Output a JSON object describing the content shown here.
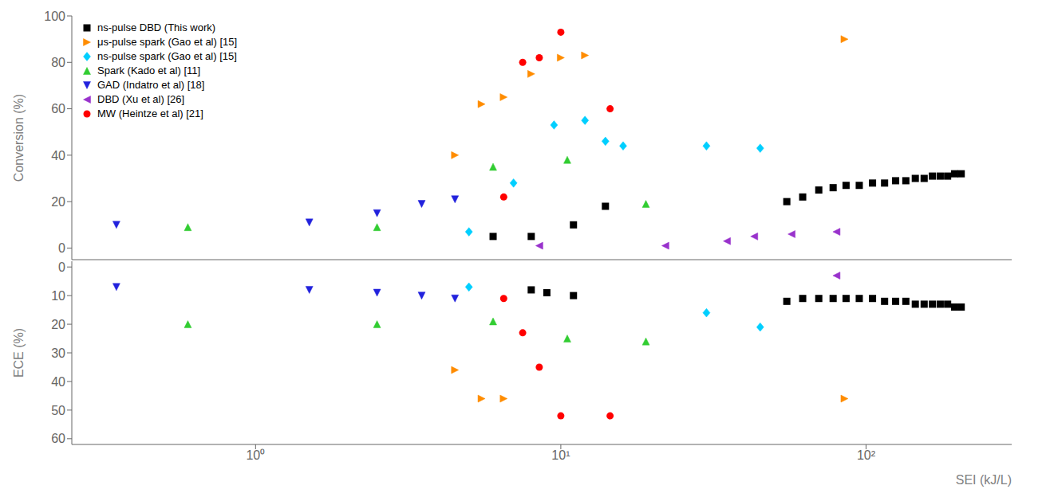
{
  "chart_data": [
    {
      "type": "scatter",
      "ylabel": "Conversion (%)",
      "log": "x",
      "xlim": [
        0.25,
        300
      ],
      "ylim": [
        -5,
        100
      ],
      "yticks": [
        0,
        20,
        40,
        60,
        80,
        100
      ],
      "tick_labels": "y",
      "grid": false,
      "legend": "upper left",
      "series": [
        {
          "name": "ns-pulse DBD (This work)",
          "color": "#000000",
          "marker": "square",
          "x": [
            6.0,
            8.0,
            11.0,
            14.0,
            55,
            62,
            70,
            78,
            86,
            95,
            105,
            115,
            125,
            135,
            145,
            155,
            165,
            175,
            185,
            195,
            205
          ],
          "values": [
            5,
            5,
            10,
            18,
            20,
            22,
            25,
            26,
            27,
            27,
            28,
            28,
            29,
            29,
            30,
            30,
            31,
            31,
            31,
            32,
            32
          ]
        },
        {
          "name": "μs-pulse spark (Gao et al) [15]",
          "color": "#FF8C00",
          "marker": "triangle-right",
          "x": [
            4.5,
            5.5,
            6.5,
            8.0,
            10.0,
            12.0,
            85
          ],
          "values": [
            40,
            62,
            65,
            75,
            82,
            83,
            90
          ]
        },
        {
          "name": "ns-pulse spark (Gao et al) [15]",
          "color": "#00CFFF",
          "marker": "diamond",
          "x": [
            5.0,
            7.0,
            9.5,
            12.0,
            14.0,
            16.0,
            30,
            45
          ],
          "values": [
            7,
            28,
            53,
            55,
            46,
            44,
            44,
            43
          ]
        },
        {
          "name": "Spark (Kado et al) [11]",
          "color": "#32CD32",
          "marker": "triangle-up",
          "x": [
            0.6,
            2.5,
            6.0,
            10.5,
            19
          ],
          "values": [
            9,
            9,
            35,
            38,
            19
          ]
        },
        {
          "name": "GAD (Indatro et al) [18]",
          "color": "#2222DD",
          "marker": "triangle-down",
          "x": [
            0.35,
            1.5,
            2.5,
            3.5,
            4.5
          ],
          "values": [
            10,
            11,
            15,
            19,
            21
          ]
        },
        {
          "name": "DBD (Xu et al) [26]",
          "color": "#9932CC",
          "marker": "triangle-left",
          "x": [
            8.5,
            22,
            35,
            43,
            57,
            80
          ],
          "values": [
            1,
            1,
            3,
            5,
            6,
            7
          ]
        },
        {
          "name": "MW (Heintze et al) [21]",
          "color": "#FF0000",
          "marker": "circle",
          "x": [
            6.5,
            7.5,
            8.5,
            10.0,
            14.5
          ],
          "values": [
            22,
            80,
            82,
            93,
            60
          ]
        }
      ]
    },
    {
      "type": "scatter",
      "xlabel": "SEI (kJ/L)",
      "ylabel": "ECE (%)",
      "log": "x",
      "xlim": [
        0.25,
        300
      ],
      "xticks": [
        {
          "value": 1,
          "label": "10⁰"
        },
        {
          "value": 10,
          "label": "10¹"
        },
        {
          "value": 100,
          "label": "10²"
        }
      ],
      "ylim": [
        62,
        -2
      ],
      "yticks": [
        0,
        10,
        20,
        30,
        40,
        50,
        60
      ],
      "grid": false,
      "series": [
        {
          "color": "#000000",
          "marker": "square",
          "x": [
            8.0,
            9.0,
            11.0,
            55,
            62,
            70,
            78,
            86,
            95,
            105,
            115,
            125,
            135,
            145,
            155,
            165,
            175,
            185,
            195,
            205
          ],
          "values": [
            8,
            9,
            10,
            12,
            11,
            11,
            11,
            11,
            11,
            11,
            12,
            12,
            12,
            13,
            13,
            13,
            13,
            13,
            14,
            14
          ]
        },
        {
          "color": "#FF8C00",
          "marker": "triangle-right",
          "x": [
            4.5,
            5.5,
            6.5,
            85
          ],
          "values": [
            36,
            46,
            46,
            46
          ]
        },
        {
          "color": "#00CFFF",
          "marker": "diamond",
          "x": [
            5.0,
            30,
            45
          ],
          "values": [
            7,
            16,
            21
          ]
        },
        {
          "color": "#32CD32",
          "marker": "triangle-up",
          "x": [
            0.6,
            2.5,
            6.0,
            10.5,
            19
          ],
          "values": [
            20,
            20,
            19,
            25,
            26
          ]
        },
        {
          "color": "#2222DD",
          "marker": "triangle-down",
          "x": [
            0.35,
            1.5,
            2.5,
            3.5,
            4.5
          ],
          "values": [
            7,
            8,
            9,
            10,
            11
          ]
        },
        {
          "color": "#9932CC",
          "marker": "triangle-left",
          "x": [
            80
          ],
          "values": [
            3
          ]
        },
        {
          "color": "#FF0000",
          "marker": "circle",
          "x": [
            6.5,
            7.5,
            8.5,
            10.0,
            14.5
          ],
          "values": [
            11,
            23,
            35,
            52,
            52
          ]
        }
      ]
    }
  ]
}
